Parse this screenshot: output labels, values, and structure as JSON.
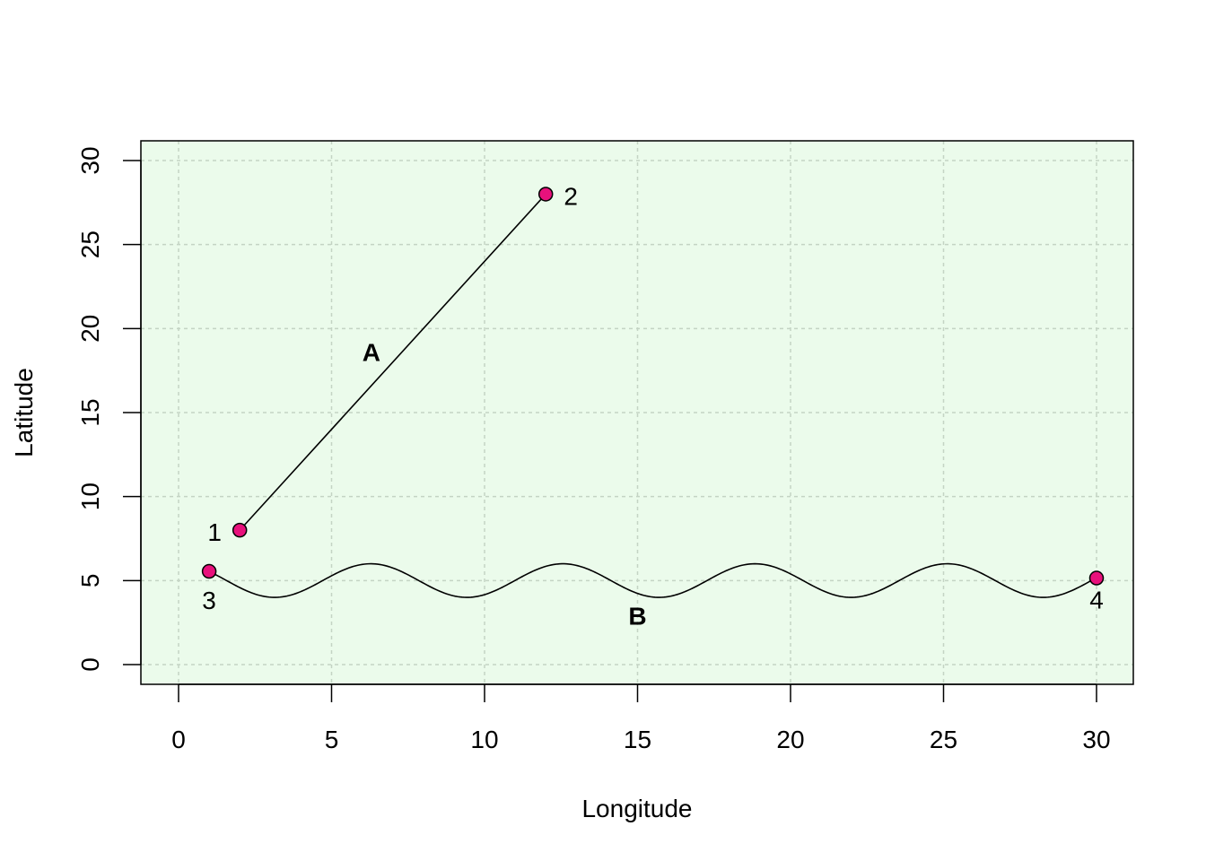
{
  "chart_data": {
    "type": "line",
    "title": "",
    "xlabel": "Longitude",
    "ylabel": "Latitude",
    "xlim": [
      0,
      30
    ],
    "ylim": [
      0,
      30
    ],
    "x_ticks": [
      0,
      5,
      10,
      15,
      20,
      25,
      30
    ],
    "y_ticks": [
      0,
      5,
      10,
      15,
      20,
      25,
      30
    ],
    "grid": true,
    "colors": {
      "panel_background": "#ebfbeb",
      "grid": "#c4d4c4",
      "point_fill": "#e8117c",
      "line": "#000000"
    },
    "points": [
      {
        "label": "1",
        "x": 2,
        "y": 8
      },
      {
        "label": "2",
        "x": 12,
        "y": 28
      },
      {
        "label": "3",
        "x": 1,
        "y": 5.55
      },
      {
        "label": "4",
        "x": 30,
        "y": 5.15
      }
    ],
    "series": [
      {
        "name": "A",
        "kind": "straight",
        "x": [
          2,
          12
        ],
        "y": [
          8,
          28
        ],
        "label_at": {
          "x": 6.3,
          "y": 18.6
        }
      },
      {
        "name": "B",
        "kind": "sinusoid",
        "x_range": [
          1,
          30
        ],
        "baseline": 5,
        "amplitude": 1,
        "period": 6.28,
        "label_at": {
          "x": 15,
          "y": 2.9
        }
      }
    ]
  }
}
